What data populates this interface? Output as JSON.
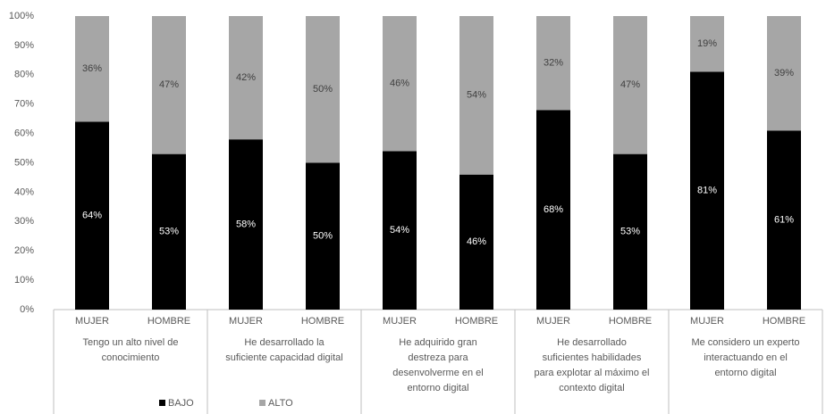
{
  "chart_data": {
    "type": "stacked_bar",
    "categories": [
      "MUJER",
      "HOMBRE",
      "MUJER",
      "HOMBRE",
      "MUJER",
      "HOMBRE",
      "MUJER",
      "HOMBRE",
      "MUJER",
      "HOMBRE"
    ],
    "groups": [
      {
        "lines": [
          "Tengo un alto nivel de",
          "conocimiento"
        ]
      },
      {
        "lines": [
          "He desarrollado la",
          "suficiente capacidad digital"
        ]
      },
      {
        "lines": [
          "He adquirido gran",
          "destreza para",
          "desenvolverme en el",
          "entorno digital"
        ]
      },
      {
        "lines": [
          "He desarrollado",
          "suficientes habilidades",
          "para explotar al máximo el",
          "contexto digital"
        ]
      },
      {
        "lines": [
          "Me considero un experto",
          "interactuando en el",
          "entorno digital"
        ]
      }
    ],
    "series": [
      {
        "name": "BAJO",
        "color": "#000000",
        "values": [
          64,
          53,
          58,
          50,
          54,
          46,
          68,
          53,
          81,
          61
        ],
        "value_labels": [
          "64%",
          "53%",
          "58%",
          "50%",
          "54%",
          "46%",
          "68%",
          "53%",
          "81%",
          "61%"
        ]
      },
      {
        "name": "ALTO",
        "color": "#a6a6a6",
        "values": [
          36,
          47,
          42,
          50,
          46,
          54,
          32,
          47,
          19,
          39
        ],
        "value_labels": [
          "36%",
          "47%",
          "42%",
          "50%",
          "46%",
          "54%",
          "32%",
          "47%",
          "19%",
          "39%"
        ]
      }
    ],
    "ylim": [
      0,
      100
    ],
    "yticks": [
      {
        "value": 0,
        "label": "0%"
      },
      {
        "value": 10,
        "label": "10%"
      },
      {
        "value": 20,
        "label": "20%"
      },
      {
        "value": 30,
        "label": "30%"
      },
      {
        "value": 40,
        "label": "40%"
      },
      {
        "value": 50,
        "label": "50%"
      },
      {
        "value": 60,
        "label": "60%"
      },
      {
        "value": 70,
        "label": "70%"
      },
      {
        "value": 80,
        "label": "80%"
      },
      {
        "value": 90,
        "label": "90%"
      },
      {
        "value": 100,
        "label": "100%"
      }
    ],
    "legend": "bottom"
  }
}
